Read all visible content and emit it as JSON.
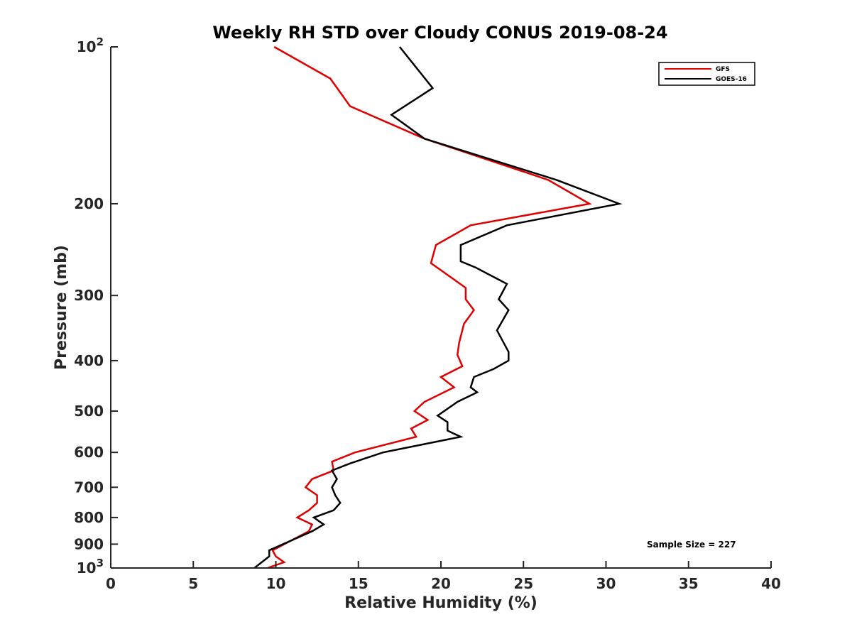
{
  "chart_data": {
    "type": "line",
    "title": "Weekly RH STD over Cloudy CONUS 2019-08-24",
    "xlabel": "Relative Humidity (%)",
    "ylabel": "Pressure (mb)",
    "xlim": [
      0,
      40
    ],
    "ylim": [
      100,
      1000
    ],
    "y_scale": "log",
    "y_reversed": true,
    "grid": false,
    "legend_position": "top-right",
    "x_ticks": [
      0,
      5,
      10,
      15,
      20,
      25,
      30,
      35,
      40
    ],
    "x_tick_labels": [
      "0",
      "5",
      "10",
      "15",
      "20",
      "25",
      "30",
      "35",
      "40"
    ],
    "y_ticks": [
      100,
      200,
      300,
      400,
      500,
      600,
      700,
      800,
      900,
      1000
    ],
    "y_tick_labels": [
      {
        "base": "10",
        "exp": "2"
      },
      {
        "base": "200",
        "exp": ""
      },
      {
        "base": "300",
        "exp": ""
      },
      {
        "base": "400",
        "exp": ""
      },
      {
        "base": "500",
        "exp": ""
      },
      {
        "base": "600",
        "exp": ""
      },
      {
        "base": "700",
        "exp": ""
      },
      {
        "base": "800",
        "exp": ""
      },
      {
        "base": "900",
        "exp": ""
      },
      {
        "base": "10",
        "exp": "3"
      }
    ],
    "series": [
      {
        "name": "GFS",
        "color": "#e00000",
        "points": [
          [
            9.5,
            1000
          ],
          [
            10.5,
            975
          ],
          [
            10.0,
            950
          ],
          [
            9.8,
            925
          ],
          [
            12.0,
            850
          ],
          [
            12.2,
            825
          ],
          [
            11.3,
            800
          ],
          [
            12.0,
            775
          ],
          [
            12.5,
            750
          ],
          [
            12.5,
            725
          ],
          [
            11.8,
            700
          ],
          [
            12.2,
            675
          ],
          [
            13.5,
            650
          ],
          [
            13.4,
            625
          ],
          [
            14.8,
            600
          ],
          [
            18.5,
            560
          ],
          [
            18.2,
            540
          ],
          [
            19.2,
            520
          ],
          [
            18.4,
            500
          ],
          [
            19.0,
            480
          ],
          [
            20.8,
            450
          ],
          [
            20.0,
            430
          ],
          [
            21.3,
            410
          ],
          [
            21.0,
            390
          ],
          [
            21.1,
            370
          ],
          [
            21.4,
            340
          ],
          [
            22.0,
            320
          ],
          [
            21.5,
            305
          ],
          [
            21.5,
            290
          ],
          [
            19.4,
            260
          ],
          [
            19.7,
            240
          ],
          [
            21.8,
            220
          ],
          [
            29.0,
            200
          ],
          [
            26.5,
            180
          ],
          [
            19.0,
            150
          ],
          [
            14.5,
            130
          ],
          [
            13.3,
            115
          ],
          [
            9.9,
            100
          ]
        ]
      },
      {
        "name": "GOES-16",
        "color": "#000000",
        "points": [
          [
            8.7,
            1000
          ],
          [
            9.6,
            950
          ],
          [
            9.6,
            925
          ],
          [
            12.2,
            850
          ],
          [
            12.9,
            825
          ],
          [
            12.3,
            800
          ],
          [
            13.5,
            775
          ],
          [
            13.9,
            750
          ],
          [
            13.6,
            725
          ],
          [
            13.4,
            700
          ],
          [
            13.7,
            675
          ],
          [
            13.4,
            650
          ],
          [
            14.5,
            630
          ],
          [
            16.5,
            600
          ],
          [
            21.2,
            560
          ],
          [
            20.4,
            545
          ],
          [
            20.4,
            525
          ],
          [
            19.8,
            510
          ],
          [
            21.0,
            480
          ],
          [
            22.2,
            460
          ],
          [
            21.8,
            450
          ],
          [
            22.0,
            430
          ],
          [
            23.2,
            415
          ],
          [
            24.1,
            400
          ],
          [
            24.1,
            385
          ],
          [
            23.4,
            350
          ],
          [
            24.1,
            320
          ],
          [
            23.5,
            305
          ],
          [
            24.0,
            285
          ],
          [
            22.1,
            265
          ],
          [
            21.2,
            258
          ],
          [
            21.2,
            240
          ],
          [
            24.0,
            220
          ],
          [
            30.8,
            200
          ],
          [
            27.0,
            180
          ],
          [
            19.0,
            150
          ],
          [
            17.0,
            135
          ],
          [
            19.5,
            120
          ],
          [
            17.5,
            100
          ]
        ]
      }
    ],
    "annotation": "Sample Size = 227"
  }
}
